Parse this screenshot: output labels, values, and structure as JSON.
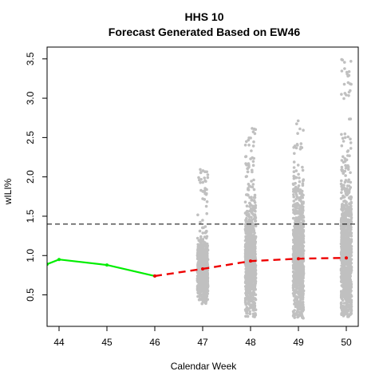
{
  "chart_data": {
    "type": "scatter",
    "title": "HHS 10",
    "subtitle": "Forecast Generated Based on EW46",
    "xlabel": "Calendar Week",
    "ylabel": "wILI%",
    "xlim": [
      43.75,
      50.25
    ],
    "ylim": [
      0.1,
      3.65
    ],
    "x_ticks": [
      44,
      45,
      46,
      47,
      48,
      49,
      50
    ],
    "x_tick_labels": [
      "44",
      "45",
      "46",
      "47",
      "48",
      "49",
      "50"
    ],
    "y_ticks": [
      0.5,
      1.0,
      1.5,
      2.0,
      2.5,
      3.0,
      3.5
    ],
    "y_tick_labels": [
      "0.5",
      "1.0",
      "1.5",
      "2.0",
      "2.5",
      "3.0",
      "3.5"
    ],
    "grid": false,
    "reference_line": {
      "y": 1.4,
      "style": "dashed",
      "color": "#000000"
    },
    "observed": {
      "color": "#00ee00",
      "x": [
        43.75,
        44,
        45,
        46
      ],
      "y": [
        0.89,
        0.95,
        0.88,
        0.74
      ]
    },
    "forecast_median": {
      "color": "#ee0000",
      "x": [
        46,
        47,
        48,
        49,
        50
      ],
      "y": [
        0.74,
        0.83,
        0.93,
        0.96,
        0.97
      ]
    },
    "forecast_samples": {
      "color": "#c0c0c0",
      "groups": [
        {
          "x": 47,
          "min": 0.38,
          "q1": 0.72,
          "median": 0.83,
          "q3": 0.97,
          "max": 2.1,
          "n": 700
        },
        {
          "x": 48,
          "min": 0.22,
          "q1": 0.72,
          "median": 0.93,
          "q3": 1.18,
          "max": 2.68,
          "n": 900
        },
        {
          "x": 49,
          "min": 0.2,
          "q1": 0.7,
          "median": 0.96,
          "q3": 1.25,
          "max": 2.75,
          "n": 900
        },
        {
          "x": 50,
          "min": 0.22,
          "q1": 0.7,
          "median": 0.97,
          "q3": 1.3,
          "max": 3.5,
          "n": 950
        }
      ]
    }
  }
}
